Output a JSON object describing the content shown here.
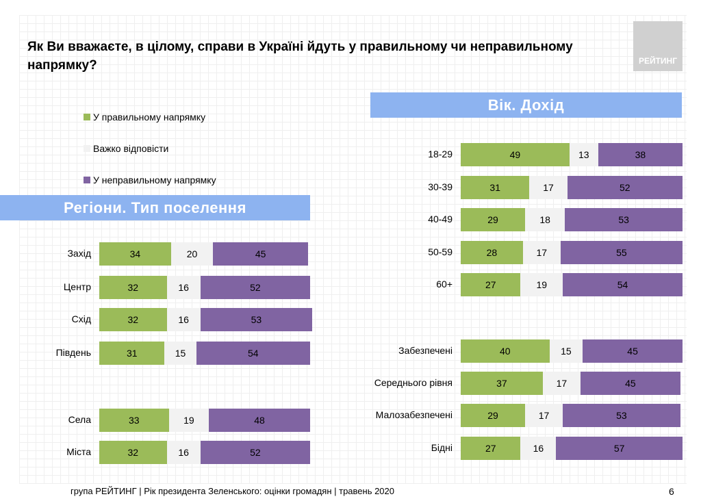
{
  "title": "Як Ви вважаєте, в цілому, справи в Україні йдуть у правильному чи неправильному напрямку?",
  "logo": "РЕЙТИНГ",
  "footer": "група РЕЙТИНГ |  Рік президента Зеленського: оцінки громадян | травень 2020",
  "page_number": "6",
  "colors": {
    "right": "#9bbb59",
    "hard": "#f2f2f2",
    "wrong": "#8064a2",
    "banner": "#8db3f0"
  },
  "chart_data": [
    {
      "type": "bar",
      "stacked": true,
      "orientation": "horizontal",
      "title": "Регіони. Тип поселення",
      "legend": [
        "У правильному напрямку",
        "Важко відповісти",
        "У неправильному напрямку"
      ],
      "categories": [
        "Захід",
        "Центр",
        "Схід",
        "Південь",
        "Села",
        "Міста"
      ],
      "series": [
        {
          "name": "У правильному напрямку",
          "values": [
            34,
            32,
            32,
            31,
            33,
            32
          ]
        },
        {
          "name": "Важко відповісти",
          "values": [
            20,
            16,
            16,
            15,
            19,
            16
          ]
        },
        {
          "name": "У неправильному напрямку",
          "values": [
            45,
            52,
            53,
            54,
            48,
            52
          ]
        }
      ]
    },
    {
      "type": "bar",
      "stacked": true,
      "orientation": "horizontal",
      "title": "Вік. Дохід",
      "categories": [
        "18-29",
        "30-39",
        "40-49",
        "50-59",
        "60+",
        "Забезпечені",
        "Середнього рівня",
        "Малозабезпечені",
        "Бідні"
      ],
      "series": [
        {
          "name": "У правильному напрямку",
          "values": [
            49,
            31,
            29,
            28,
            27,
            40,
            37,
            29,
            27
          ]
        },
        {
          "name": "Важко відповісти",
          "values": [
            13,
            17,
            18,
            17,
            19,
            15,
            17,
            17,
            16
          ]
        },
        {
          "name": "У неправильному напрямку",
          "values": [
            38,
            52,
            53,
            55,
            54,
            45,
            45,
            53,
            57
          ]
        }
      ]
    }
  ]
}
